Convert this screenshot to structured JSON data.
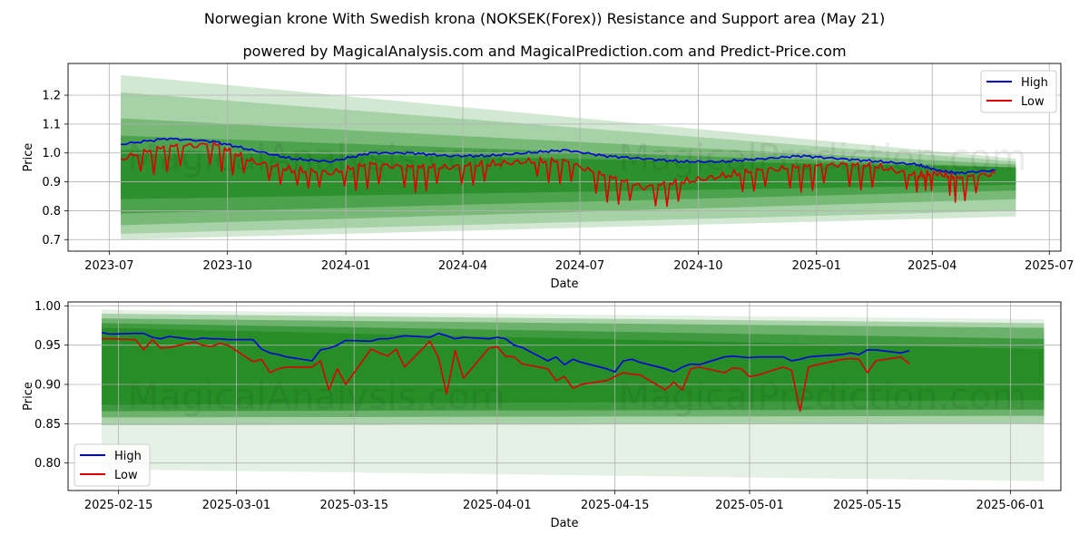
{
  "title": "Norwegian krone With Swedish krona (NOKSEK(Forex)) Resistance and Support area (May 21)",
  "subtitle": "powered by MagicalAnalysis.com and MagicalPrediction.com and Predict-Price.com",
  "watermarks": [
    "MagicalAnalysis.com",
    "MagicalPrediction.com"
  ],
  "colors": {
    "high": "#0000dd",
    "low": "#dd0000",
    "band": "#228b22",
    "grid": "#b0b0b0"
  },
  "chart_data": [
    {
      "type": "line",
      "xlabel": "Date",
      "ylabel": "Price",
      "x_ticks": [
        "2023-07",
        "2023-10",
        "2024-01",
        "2024-04",
        "2024-07",
        "2024-10",
        "2025-01",
        "2025-04",
        "2025-07"
      ],
      "y_ticks": [
        "0.7",
        "0.8",
        "0.9",
        "1.0",
        "1.1",
        "1.2"
      ],
      "xlim": [
        "2023-05-30",
        "2025-07-10"
      ],
      "ylim": [
        0.66,
        1.31
      ],
      "grid": true,
      "legend": "top-right",
      "data_range": [
        "2023-07-10",
        "2025-05-20"
      ],
      "forecast_end": "2025-06-05",
      "series": [
        {
          "name": "High",
          "x": [
            "2023-07-10",
            "2023-08-15",
            "2023-09-20",
            "2023-10-20",
            "2023-11-20",
            "2023-12-20",
            "2024-01-20",
            "2024-02-20",
            "2024-03-20",
            "2024-04-20",
            "2024-05-20",
            "2024-06-20",
            "2024-07-20",
            "2024-08-20",
            "2024-09-20",
            "2024-10-20",
            "2024-11-20",
            "2024-12-20",
            "2025-01-20",
            "2025-02-20",
            "2025-03-20",
            "2025-04-05",
            "2025-04-20",
            "2025-05-20"
          ],
          "values": [
            1.03,
            1.05,
            1.04,
            1.01,
            0.98,
            0.97,
            1.0,
            1.0,
            0.99,
            0.99,
            1.0,
            1.01,
            0.99,
            0.98,
            0.97,
            0.97,
            0.98,
            0.99,
            0.98,
            0.97,
            0.96,
            0.94,
            0.93,
            0.94
          ]
        },
        {
          "name": "Low",
          "x": [
            "2023-07-10",
            "2023-08-15",
            "2023-09-20",
            "2023-10-20",
            "2023-11-20",
            "2023-12-20",
            "2024-01-20",
            "2024-02-20",
            "2024-03-20",
            "2024-04-20",
            "2024-05-20",
            "2024-06-20",
            "2024-07-20",
            "2024-08-20",
            "2024-09-20",
            "2024-10-20",
            "2024-11-20",
            "2024-12-20",
            "2025-01-20",
            "2025-02-20",
            "2025-03-20",
            "2025-04-05",
            "2025-04-20",
            "2025-05-20"
          ],
          "values": [
            0.98,
            1.02,
            1.03,
            0.97,
            0.94,
            0.93,
            0.96,
            0.95,
            0.95,
            0.96,
            0.97,
            0.97,
            0.92,
            0.88,
            0.9,
            0.92,
            0.94,
            0.95,
            0.96,
            0.95,
            0.92,
            0.93,
            0.91,
            0.93
          ]
        }
      ],
      "bands": [
        {
          "x": [
            "2023-07-10",
            "2025-06-05"
          ],
          "upper": [
            1.27,
            0.98
          ],
          "lower": [
            0.7,
            0.78
          ],
          "opacity": 0.2
        },
        {
          "x": [
            "2023-07-10",
            "2025-06-05"
          ],
          "upper": [
            1.21,
            0.97
          ],
          "lower": [
            0.72,
            0.8
          ],
          "opacity": 0.25
        },
        {
          "x": [
            "2023-07-10",
            "2025-06-05"
          ],
          "upper": [
            1.12,
            0.96
          ],
          "lower": [
            0.75,
            0.84
          ],
          "opacity": 0.35
        },
        {
          "x": [
            "2023-07-10",
            "2025-06-05"
          ],
          "upper": [
            1.06,
            0.95
          ],
          "lower": [
            0.79,
            0.87
          ],
          "opacity": 0.5
        },
        {
          "x": [
            "2023-07-10",
            "2025-06-05"
          ],
          "upper": [
            1.01,
            0.95
          ],
          "lower": [
            0.84,
            0.89
          ],
          "opacity": 0.75
        }
      ]
    },
    {
      "type": "line",
      "xlabel": "Date",
      "ylabel": "Price",
      "x_ticks": [
        "2025-02-15",
        "2025-03-01",
        "2025-03-15",
        "2025-04-01",
        "2025-04-15",
        "2025-05-01",
        "2025-05-15",
        "2025-06-01"
      ],
      "y_ticks": [
        "0.80",
        "0.85",
        "0.90",
        "0.95",
        "1.00"
      ],
      "xlim": [
        "2025-02-09",
        "2025-06-07"
      ],
      "ylim": [
        0.765,
        1.005
      ],
      "grid": true,
      "legend": "bottom-left",
      "series": [
        {
          "name": "High",
          "x": [
            "2025-02-13",
            "2025-02-14",
            "2025-02-17",
            "2025-02-18",
            "2025-02-19",
            "2025-02-20",
            "2025-02-21",
            "2025-02-24",
            "2025-02-25",
            "2025-02-26",
            "2025-02-27",
            "2025-02-28",
            "2025-03-03",
            "2025-03-04",
            "2025-03-05",
            "2025-03-06",
            "2025-03-07",
            "2025-03-10",
            "2025-03-11",
            "2025-03-12",
            "2025-03-13",
            "2025-03-14",
            "2025-03-17",
            "2025-03-18",
            "2025-03-19",
            "2025-03-20",
            "2025-03-21",
            "2025-03-24",
            "2025-03-25",
            "2025-03-26",
            "2025-03-27",
            "2025-03-28",
            "2025-03-31",
            "2025-04-01",
            "2025-04-02",
            "2025-04-03",
            "2025-04-04",
            "2025-04-07",
            "2025-04-08",
            "2025-04-09",
            "2025-04-10",
            "2025-04-11",
            "2025-04-14",
            "2025-04-15",
            "2025-04-16",
            "2025-04-17",
            "2025-04-18",
            "2025-04-21",
            "2025-04-22",
            "2025-04-23",
            "2025-04-24",
            "2025-04-25",
            "2025-04-28",
            "2025-04-29",
            "2025-04-30",
            "2025-05-01",
            "2025-05-02",
            "2025-05-05",
            "2025-05-06",
            "2025-05-07",
            "2025-05-08",
            "2025-05-09",
            "2025-05-12",
            "2025-05-13",
            "2025-05-14",
            "2025-05-15",
            "2025-05-16",
            "2025-05-19",
            "2025-05-20"
          ],
          "values": [
            0.966,
            0.964,
            0.965,
            0.965,
            0.96,
            0.958,
            0.961,
            0.957,
            0.959,
            0.958,
            0.958,
            0.957,
            0.957,
            0.945,
            0.94,
            0.938,
            0.935,
            0.93,
            0.944,
            0.946,
            0.95,
            0.956,
            0.955,
            0.958,
            0.958,
            0.96,
            0.962,
            0.96,
            0.965,
            0.962,
            0.958,
            0.96,
            0.958,
            0.96,
            0.958,
            0.95,
            0.947,
            0.93,
            0.935,
            0.925,
            0.932,
            0.928,
            0.92,
            0.916,
            0.93,
            0.932,
            0.928,
            0.92,
            0.916,
            0.922,
            0.926,
            0.925,
            0.935,
            0.936,
            0.935,
            0.934,
            0.935,
            0.935,
            0.93,
            0.932,
            0.935,
            0.936,
            0.938,
            0.94,
            0.938,
            0.944,
            0.944,
            0.94,
            0.943
          ]
        },
        {
          "name": "Low",
          "x": [
            "2025-02-13",
            "2025-02-14",
            "2025-02-17",
            "2025-02-18",
            "2025-02-19",
            "2025-02-20",
            "2025-02-21",
            "2025-02-24",
            "2025-02-25",
            "2025-02-26",
            "2025-02-27",
            "2025-02-28",
            "2025-03-03",
            "2025-03-04",
            "2025-03-05",
            "2025-03-06",
            "2025-03-07",
            "2025-03-10",
            "2025-03-11",
            "2025-03-12",
            "2025-03-13",
            "2025-03-14",
            "2025-03-17",
            "2025-03-18",
            "2025-03-19",
            "2025-03-20",
            "2025-03-21",
            "2025-03-24",
            "2025-03-25",
            "2025-03-26",
            "2025-03-27",
            "2025-03-28",
            "2025-03-31",
            "2025-04-01",
            "2025-04-02",
            "2025-04-03",
            "2025-04-04",
            "2025-04-07",
            "2025-04-08",
            "2025-04-09",
            "2025-04-10",
            "2025-04-11",
            "2025-04-14",
            "2025-04-15",
            "2025-04-16",
            "2025-04-17",
            "2025-04-18",
            "2025-04-21",
            "2025-04-22",
            "2025-04-23",
            "2025-04-24",
            "2025-04-25",
            "2025-04-28",
            "2025-04-29",
            "2025-04-30",
            "2025-05-01",
            "2025-05-02",
            "2025-05-05",
            "2025-05-06",
            "2025-05-07",
            "2025-05-08",
            "2025-05-09",
            "2025-05-12",
            "2025-05-13",
            "2025-05-14",
            "2025-05-15",
            "2025-05-16",
            "2025-05-19",
            "2025-05-20"
          ],
          "values": [
            0.958,
            0.958,
            0.957,
            0.944,
            0.957,
            0.946,
            0.947,
            0.954,
            0.95,
            0.948,
            0.952,
            0.95,
            0.929,
            0.932,
            0.915,
            0.92,
            0.922,
            0.922,
            0.93,
            0.893,
            0.92,
            0.9,
            0.945,
            0.94,
            0.936,
            0.945,
            0.922,
            0.955,
            0.935,
            0.888,
            0.943,
            0.908,
            0.946,
            0.948,
            0.936,
            0.935,
            0.926,
            0.92,
            0.905,
            0.91,
            0.895,
            0.9,
            0.905,
            0.91,
            0.915,
            0.913,
            0.912,
            0.893,
            0.903,
            0.893,
            0.92,
            0.922,
            0.915,
            0.921,
            0.92,
            0.91,
            0.912,
            0.922,
            0.918,
            0.866,
            0.922,
            0.925,
            0.932,
            0.933,
            0.932,
            0.915,
            0.93,
            0.935,
            0.926
          ]
        }
      ],
      "bands": [
        {
          "x": [
            "2025-02-13",
            "2025-06-05"
          ],
          "upper": [
            0.995,
            0.983
          ],
          "lower": [
            0.792,
            0.777
          ],
          "opacity": 0.12
        },
        {
          "x": [
            "2025-02-13",
            "2025-06-05"
          ],
          "upper": [
            0.99,
            0.978
          ],
          "lower": [
            0.848,
            0.85
          ],
          "opacity": 0.3
        },
        {
          "x": [
            "2025-02-13",
            "2025-06-05"
          ],
          "upper": [
            0.984,
            0.972
          ],
          "lower": [
            0.858,
            0.86
          ],
          "opacity": 0.45
        },
        {
          "x": [
            "2025-02-13",
            "2025-06-05"
          ],
          "upper": [
            0.978,
            0.958
          ],
          "lower": [
            0.866,
            0.868
          ],
          "opacity": 0.6
        },
        {
          "x": [
            "2025-02-13",
            "2025-06-05"
          ],
          "upper": [
            0.972,
            0.945
          ],
          "lower": [
            0.874,
            0.88
          ],
          "opacity": 0.8
        }
      ]
    }
  ]
}
